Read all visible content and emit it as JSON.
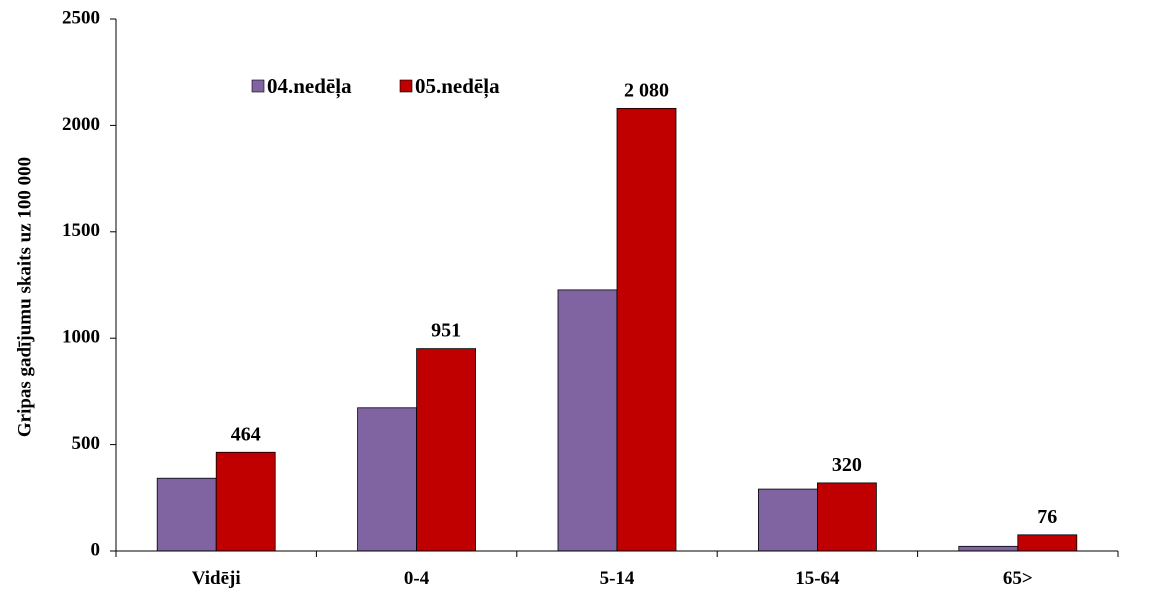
{
  "chart_data": {
    "type": "bar",
    "title": "",
    "xlabel": "",
    "ylabel": "Gripas gadījumu skaits uz 100 000",
    "ylim": [
      0,
      2500
    ],
    "yticks": [
      "0",
      "500",
      "1000",
      "1500",
      "2000",
      "2500"
    ],
    "categories": [
      "Vidēji",
      "0-4",
      "5-14",
      "15-64",
      "65>"
    ],
    "series": [
      {
        "name": "04.nedēļa",
        "values": [
          342,
          673,
          1227,
          291,
          22
        ],
        "color": "#8064A2"
      },
      {
        "name": "05.nedēļa",
        "values": [
          464,
          951,
          2080,
          320,
          76
        ],
        "color": "#C00000"
      }
    ],
    "data_labels": [
      "464",
      "951",
      "2 080",
      "320",
      "76"
    ],
    "legend_position": "top-left",
    "grid": false
  }
}
